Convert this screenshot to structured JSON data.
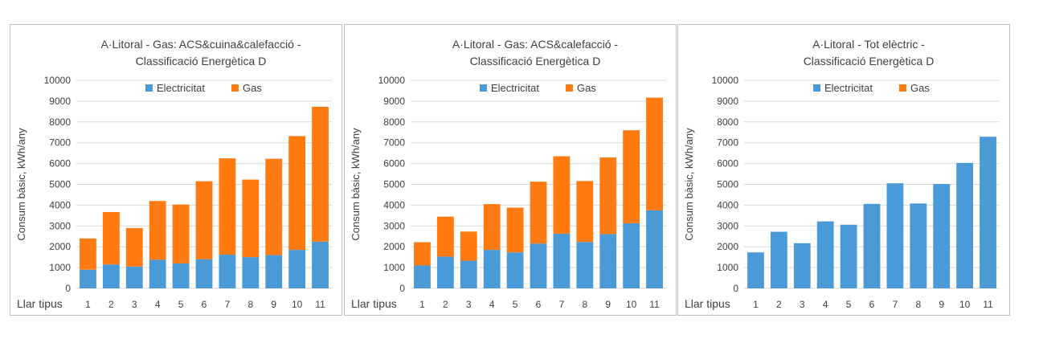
{
  "colors": {
    "electricity": "#4a9ad8",
    "gas": "#ff7a10",
    "grid": "#d9d9d9",
    "text": "#404040"
  },
  "chart_data": [
    {
      "type": "bar",
      "stacked": true,
      "title_lines": [
        "A·Litoral - Gas: ACS&cuina&calefacció -",
        "Classificació Energètica D"
      ],
      "ylabel": "Consum bàsic, kWh/any",
      "xlabel": "Llar tipus",
      "ylim": [
        0,
        10000
      ],
      "yticks": [
        "0",
        "1000",
        "2000",
        "3000",
        "4000",
        "5000",
        "6000",
        "7000",
        "8000",
        "9000",
        "10000"
      ],
      "categories": [
        "1",
        "2",
        "3",
        "4",
        "5",
        "6",
        "7",
        "8",
        "9",
        "10",
        "11"
      ],
      "legend_position": "top",
      "series": [
        {
          "name": "Electricitat",
          "values": [
            900,
            1150,
            1050,
            1380,
            1200,
            1400,
            1620,
            1500,
            1600,
            1850,
            2250
          ]
        },
        {
          "name": "Gas",
          "values": [
            1500,
            2520,
            1850,
            2820,
            2830,
            3750,
            4630,
            3730,
            4630,
            5470,
            6480
          ]
        }
      ]
    },
    {
      "type": "bar",
      "stacked": true,
      "title_lines": [
        "A·Litoral - Gas: ACS&calefacció -",
        "Classificació Energètica D"
      ],
      "ylabel": "Consum bàsic, kWh/any",
      "xlabel": "Llar tipus",
      "ylim": [
        0,
        10000
      ],
      "yticks": [
        "0",
        "1000",
        "2000",
        "3000",
        "4000",
        "5000",
        "6000",
        "7000",
        "8000",
        "9000",
        "10000"
      ],
      "categories": [
        "1",
        "2",
        "3",
        "4",
        "5",
        "6",
        "7",
        "8",
        "9",
        "10",
        "11"
      ],
      "legend_position": "top",
      "series": [
        {
          "name": "Electricitat",
          "values": [
            1100,
            1530,
            1330,
            1850,
            1730,
            2150,
            2630,
            2230,
            2610,
            3130,
            3750
          ]
        },
        {
          "name": "Gas",
          "values": [
            1120,
            1920,
            1400,
            2200,
            2150,
            2980,
            3720,
            2930,
            3680,
            4470,
            5420
          ]
        }
      ]
    },
    {
      "type": "bar",
      "stacked": true,
      "title_lines": [
        "A·Litoral - Tot elèctric -",
        "Classificació Energètica D"
      ],
      "ylabel": "Consum bàsic, kWh/any",
      "xlabel": "Llar tipus",
      "ylim": [
        0,
        10000
      ],
      "yticks": [
        "0",
        "1000",
        "2000",
        "3000",
        "4000",
        "5000",
        "6000",
        "7000",
        "8000",
        "9000",
        "10000"
      ],
      "categories": [
        "1",
        "2",
        "3",
        "4",
        "5",
        "6",
        "7",
        "8",
        "9",
        "10",
        "11"
      ],
      "legend_position": "top",
      "series": [
        {
          "name": "Electricitat",
          "values": [
            1730,
            2720,
            2170,
            3220,
            3060,
            4060,
            5050,
            4080,
            5020,
            6030,
            7290
          ]
        },
        {
          "name": "Gas",
          "values": [
            0,
            0,
            0,
            0,
            0,
            0,
            0,
            0,
            0,
            0,
            0
          ]
        }
      ]
    }
  ]
}
